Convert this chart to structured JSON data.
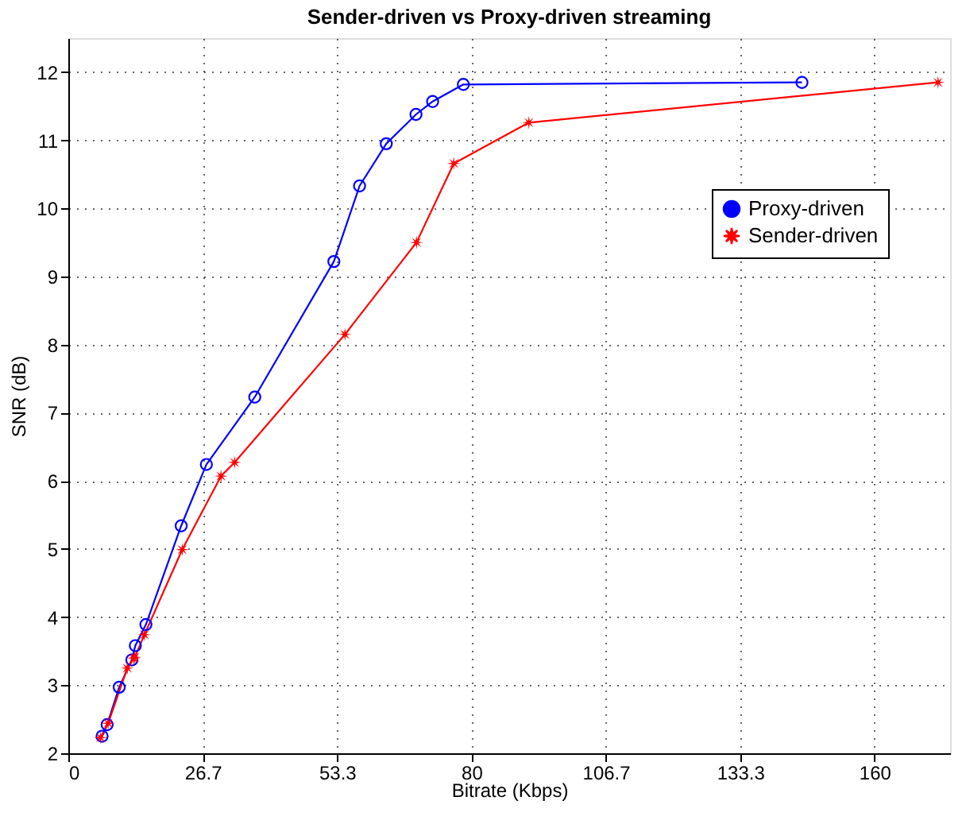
{
  "chart_data": {
    "type": "line",
    "title": "Sender-driven vs Proxy-driven streaming",
    "xlabel": "Bitrate (Kbps)",
    "ylabel": "SNR (dB)",
    "xlim": [
      0,
      175
    ],
    "ylim": [
      2,
      12.5
    ],
    "xticks": [
      0,
      {
        "value": 26.667,
        "label": "26.7"
      },
      {
        "value": 53.333,
        "label": "53.3"
      },
      80,
      {
        "value": 106.667,
        "label": "106.7"
      },
      {
        "value": 133.333,
        "label": "133.3"
      },
      160
    ],
    "yticks": [
      2,
      3,
      4,
      5,
      6,
      7,
      8,
      9,
      10,
      11,
      12
    ],
    "grid": true,
    "legend": "top right",
    "line_style": "solid",
    "series": [
      {
        "name": "Proxy-driven",
        "color": "#0000ff",
        "marker": "circle",
        "x": [
          6.7,
          7.7,
          10.1,
          12.6,
          13.3,
          15.4,
          22.4,
          27.4,
          37.0,
          52.7,
          57.8,
          63.1,
          69.0,
          72.3,
          78.4,
          145.6
        ],
        "values": [
          2.25,
          2.42,
          2.97,
          3.37,
          3.58,
          3.89,
          5.34,
          6.24,
          7.23,
          9.22,
          10.33,
          10.95,
          11.38,
          11.57,
          11.82,
          11.85
        ]
      },
      {
        "name": "Sender-driven",
        "color": "#ff0000",
        "marker": "star",
        "x": [
          6.4,
          7.9,
          11.7,
          13.0,
          13.2,
          15.1,
          22.6,
          30.3,
          33.0,
          54.9,
          69.1,
          76.5,
          91.4,
          172.6
        ],
        "values": [
          2.23,
          2.44,
          3.25,
          3.39,
          3.41,
          3.74,
          4.99,
          6.07,
          6.27,
          8.15,
          9.5,
          10.66,
          11.26,
          11.85
        ]
      }
    ]
  }
}
